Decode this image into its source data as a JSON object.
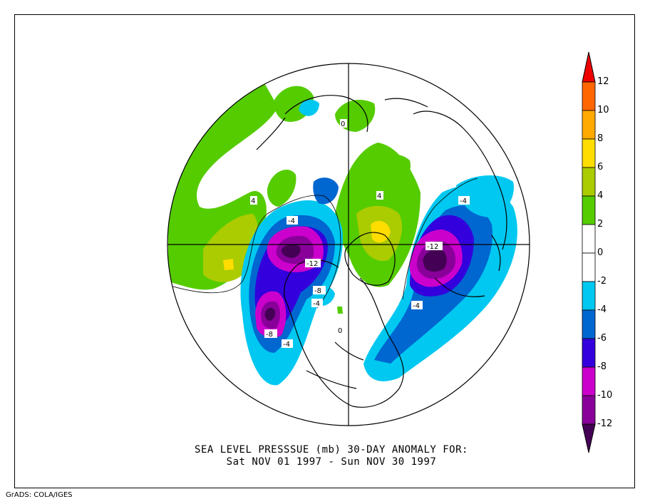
{
  "title": {
    "line1": "SEA LEVEL PRESSSUE (mb)   30-DAY ANOMALY FOR:",
    "line2": "Sat NOV 01 1997 - Sun NOV 30 1997"
  },
  "credit": "GrADS: COLA/IGES",
  "colorbar": {
    "levels": [
      "12",
      "10",
      "8",
      "6",
      "4",
      "2",
      "0",
      "-2",
      "-4",
      "-6",
      "-8",
      "-10",
      "-12"
    ],
    "colors": [
      "#ee0000",
      "#ff6600",
      "#ffaa00",
      "#ffdd00",
      "#aacc00",
      "#55cc00",
      "#ffffff",
      "#ffffff",
      "#00c8f0",
      "#0066d0",
      "#3300dd",
      "#cc00cc",
      "#880099",
      "#440055"
    ]
  },
  "contour_labels": [
    {
      "id": "atlantic-low-center",
      "text": "-12"
    },
    {
      "id": "canada-low-center",
      "text": "-12"
    },
    {
      "id": "canada-low-ring",
      "text": "-4"
    },
    {
      "id": "pacific-low-ring",
      "text": "-8"
    },
    {
      "id": "pacific-low-outer",
      "text": "-4"
    },
    {
      "id": "alaska-ring",
      "text": "-8"
    },
    {
      "id": "alaska-outer",
      "text": "-4"
    },
    {
      "id": "atlantic-outer",
      "text": "-4"
    },
    {
      "id": "siberia-outer",
      "text": "-4"
    },
    {
      "id": "greenland-high",
      "text": "4"
    },
    {
      "id": "europe-high",
      "text": "4"
    },
    {
      "id": "zero-line",
      "text": "0"
    },
    {
      "id": "us-zero",
      "text": "0"
    }
  ]
}
